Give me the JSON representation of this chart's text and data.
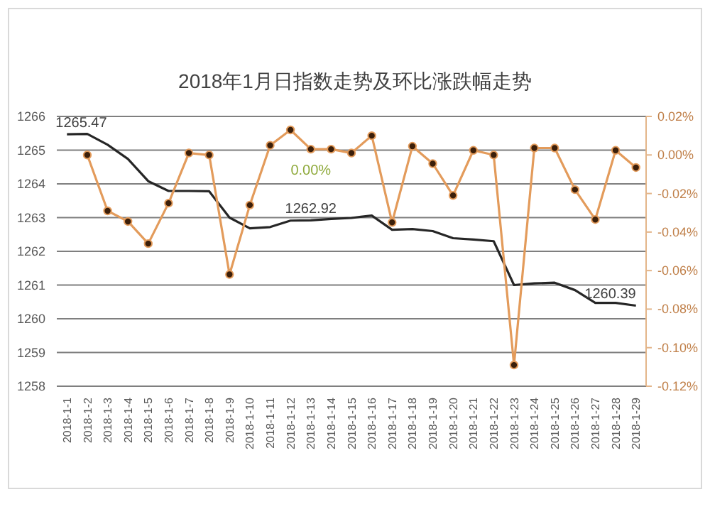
{
  "chart_data": {
    "type": "line",
    "title": "2018年1月日指数走势及环比涨跌幅走势",
    "categories": [
      "2018-1-1",
      "2018-1-2",
      "2018-1-3",
      "2018-1-4",
      "2018-1-5",
      "2018-1-6",
      "2018-1-7",
      "2018-1-8",
      "2018-1-9",
      "2018-1-10",
      "2018-1-11",
      "2018-1-12",
      "2018-1-13",
      "2018-1-14",
      "2018-1-15",
      "2018-1-16",
      "2018-1-17",
      "2018-1-18",
      "2018-1-19",
      "2018-1-20",
      "2018-1-21",
      "2018-1-22",
      "2018-1-23",
      "2018-1-24",
      "2018-1-25",
      "2018-1-26",
      "2018-1-27",
      "2018-1-28",
      "2018-1-29"
    ],
    "series": [
      {
        "color": "#262626",
        "marker": "none",
        "values": [
          1265.47,
          1265.48,
          1265.16,
          1264.74,
          1264.08,
          1263.79,
          1263.79,
          1263.78,
          1263.0,
          1262.68,
          1262.72,
          1262.91,
          1262.92,
          1262.96,
          1262.99,
          1263.06,
          1262.64,
          1262.66,
          1262.6,
          1262.39,
          1262.35,
          1262.3,
          1261.0,
          1261.05,
          1261.07,
          1260.85,
          1260.47,
          1260.47,
          1260.39
        ]
      },
      {
        "color": "#e39b5b",
        "marker": "circle",
        "axis": "y2",
        "values": [
          null,
          0.0,
          -0.029,
          -0.0345,
          -0.046,
          -0.025,
          0.001,
          0.0,
          -0.062,
          -0.026,
          0.005,
          0.013,
          0.003,
          0.003,
          0.001,
          0.01,
          -0.035,
          0.0045,
          -0.0045,
          -0.021,
          0.0024,
          0.0,
          -0.109,
          0.0036,
          0.0036,
          -0.018,
          -0.0335,
          0.0024,
          -0.0065
        ]
      }
    ],
    "ylim": [
      1258,
      1266
    ],
    "yticks": [
      1258,
      1259,
      1260,
      1261,
      1262,
      1263,
      1264,
      1265,
      1266
    ],
    "y2lim": [
      -0.12,
      0.02
    ],
    "y2ticks": [
      {
        "value": 0.02,
        "label": "0.02%"
      },
      {
        "value": 0,
        "label": "0.00%"
      },
      {
        "value": -0.02,
        "label": "-0.02%"
      },
      {
        "value": -0.04,
        "label": "-0.04%"
      },
      {
        "value": -0.06,
        "label": "-0.06%"
      },
      {
        "value": -0.08,
        "label": "-0.08%"
      },
      {
        "value": -0.1,
        "label": "-0.10%"
      },
      {
        "value": -0.12,
        "label": "-0.12%"
      }
    ],
    "grid": "y",
    "annotations": [
      {
        "text": "1265.47",
        "x": "2018-1-1",
        "y": 1265.47
      },
      {
        "text": "1262.92",
        "x": "2018-1-13",
        "y": 1262.92
      },
      {
        "text": "1260.39",
        "x": "2018-1-29",
        "y": 1260.39
      },
      "0.00%"
    ]
  }
}
